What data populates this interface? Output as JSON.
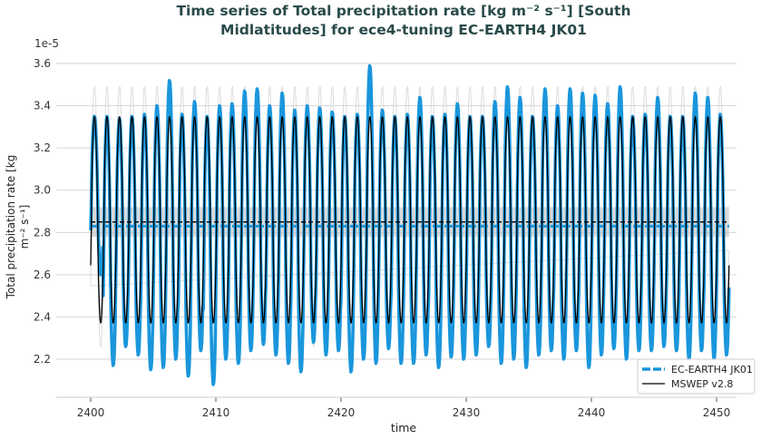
{
  "chart_data": {
    "type": "line",
    "title_line1": "Time series of Total precipitation rate [kg m⁻² s⁻¹] [South",
    "title_line2": "Midlatitudes] for ece4-tuning EC-EARTH4 JK01",
    "xlabel": "time",
    "ylabel_line1": "Total precipitation rate [kg",
    "ylabel_line2": "m⁻² s⁻¹]",
    "y_scale_label": "1e-5",
    "xlim": [
      2400,
      2451
    ],
    "ylim": [
      2.05,
      3.62
    ],
    "xticks": [
      2400,
      2410,
      2420,
      2430,
      2440,
      2450
    ],
    "yticks": [
      2.2,
      2.4,
      2.6,
      2.8,
      3.0,
      3.2,
      3.4,
      3.6
    ],
    "ytick_labels": [
      "2.2",
      "2.4",
      "2.6",
      "2.8",
      "3.0",
      "3.2",
      "3.4",
      "3.6"
    ],
    "grid": "horizontal",
    "legend_placement": "lower-right",
    "series": [
      {
        "name": "EC-EARTH4 JK01",
        "color": "#1a96dc",
        "annual_mean": 2.83,
        "peaks": [
          3.35,
          3.35,
          3.34,
          3.35,
          3.36,
          3.4,
          3.52,
          3.36,
          3.42,
          3.35,
          3.4,
          3.41,
          3.47,
          3.48,
          3.4,
          3.46,
          3.38,
          3.4,
          3.39,
          3.37,
          3.35,
          3.36,
          3.59,
          3.38,
          3.35,
          3.36,
          3.44,
          3.35,
          3.36,
          3.41,
          3.35,
          3.35,
          3.42,
          3.49,
          3.44,
          3.35,
          3.48,
          3.4,
          3.48,
          3.46,
          3.45,
          3.41,
          3.49,
          3.35,
          3.36,
          3.44,
          3.35,
          3.35,
          3.46,
          3.44,
          3.36
        ],
        "troughs": [
          2.6,
          2.17,
          2.26,
          2.22,
          2.15,
          2.16,
          2.2,
          2.12,
          2.24,
          2.08,
          2.2,
          2.18,
          2.24,
          2.27,
          2.22,
          2.18,
          2.14,
          2.28,
          2.22,
          2.24,
          2.14,
          2.2,
          2.18,
          2.25,
          2.18,
          2.18,
          2.22,
          2.16,
          2.21,
          2.2,
          2.22,
          2.26,
          2.18,
          2.2,
          2.16,
          2.22,
          2.24,
          2.2,
          2.24,
          2.16,
          2.22,
          2.25,
          2.2,
          2.24,
          2.24,
          2.26,
          2.24,
          2.2,
          2.24,
          2.2,
          2.22
        ]
      },
      {
        "name": "MSWEP v2.8",
        "color": "#000000",
        "annual_mean": 2.85,
        "peak": 3.35,
        "trough": 2.37,
        "spread_peak": 3.5,
        "spread_trough": 2.25,
        "mean_band": [
          2.78,
          2.92
        ]
      }
    ]
  }
}
